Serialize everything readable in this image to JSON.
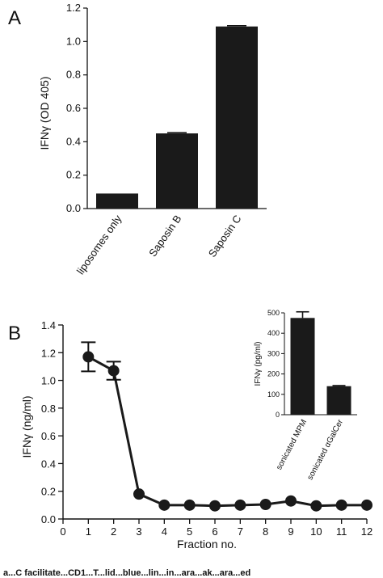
{
  "panel_a": {
    "letter": "A"
  },
  "panel_b": {
    "letter": "B"
  },
  "caption_fragment": "a...C facilitate...CD1...T...lid...blue...lin...in...ara...ak...ara...ed",
  "chart_data": [
    {
      "id": "A",
      "type": "bar",
      "categories": [
        "liposomes only",
        "Saposin B",
        "Saposin C"
      ],
      "values": [
        0.09,
        0.45,
        1.09
      ],
      "errors": [
        0.0,
        0.005,
        0.005
      ],
      "ylabel": "IFNγ (OD 405)",
      "ylim": [
        0,
        1.2
      ],
      "yticks": [
        "0.0",
        "0.2",
        "0.4",
        "0.6",
        "0.8",
        "1.0",
        "1.2"
      ],
      "bar_color": "#1a1a1a"
    },
    {
      "id": "B",
      "type": "line",
      "x": [
        1,
        2,
        3,
        4,
        5,
        6,
        7,
        8,
        9,
        10,
        11,
        12
      ],
      "y": [
        1.17,
        1.07,
        0.18,
        0.1,
        0.1,
        0.095,
        0.1,
        0.105,
        0.13,
        0.095,
        0.1,
        0.1
      ],
      "errors": [
        0.105,
        0.065,
        0.01,
        0.005,
        0.005,
        0.005,
        0.005,
        0.005,
        0.005,
        0.005,
        0.005,
        0.005
      ],
      "xlabel": "Fraction no.",
      "ylabel": "IFNγ (ng/ml)",
      "xlim": [
        0,
        12
      ],
      "ylim": [
        0,
        1.4
      ],
      "xticks": [
        "0",
        "1",
        "2",
        "3",
        "4",
        "5",
        "6",
        "7",
        "8",
        "9",
        "10",
        "11",
        "12"
      ],
      "yticks": [
        "0.0",
        "0.2",
        "0.4",
        "0.6",
        "0.8",
        "1.0",
        "1.2",
        "1.4"
      ],
      "line_color": "#1a1a1a"
    },
    {
      "id": "B-inset",
      "type": "bar",
      "categories": [
        "sonicated MPM",
        "sonicated αGalCer"
      ],
      "values": [
        475,
        140
      ],
      "errors": [
        30,
        3
      ],
      "ylabel": "IFNγ (pg/ml)",
      "ylim": [
        0,
        500
      ],
      "yticks": [
        "0",
        "100",
        "200",
        "300",
        "400",
        "500"
      ],
      "bar_color": "#1a1a1a"
    }
  ]
}
